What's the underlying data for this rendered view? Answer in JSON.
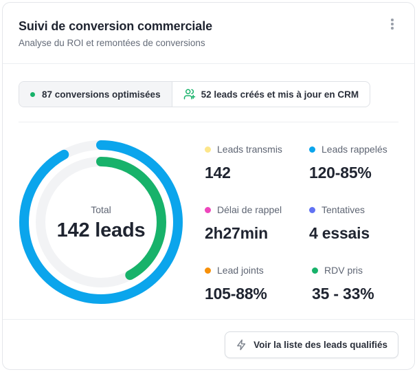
{
  "header": {
    "title": "Suivi de conversion commerciale",
    "subtitle": "Analyse du ROI et remontées de conversions"
  },
  "pills": [
    {
      "label": "87 conversions optimisées",
      "icon": "green-dot-icon",
      "color": "#17b26a"
    },
    {
      "label": "52 leads créés et mis à jour en CRM",
      "icon": "user-plus-icon",
      "color": "#17b26a"
    }
  ],
  "donut": {
    "label": "Total",
    "value": "142 leads",
    "outer_fill": 0.92,
    "inner_fill": 0.42,
    "colors": {
      "outer": "#0ba5ec",
      "inner": "#17b26a",
      "track": "#f2f3f5"
    }
  },
  "stats": [
    {
      "label": "Leads transmis",
      "value": "142",
      "color": "#fde68a"
    },
    {
      "label": "Leads rappelés",
      "value": "120-85%",
      "color": "#0ba5ec"
    },
    {
      "label": "Délai de rappel",
      "value": "2h27min",
      "color": "#ee46bc"
    },
    {
      "label": "Tentatives",
      "value": "4 essais",
      "color": "#6172f3"
    },
    {
      "label": "Lead joints",
      "value": "105-88%",
      "color": "#f79009"
    },
    {
      "label": "RDV pris",
      "value": "35 - 33%",
      "color": "#17b26a"
    }
  ],
  "footer": {
    "cta_label": "Voir la liste des leads qualifiés",
    "cta_icon": "lightning-icon"
  }
}
